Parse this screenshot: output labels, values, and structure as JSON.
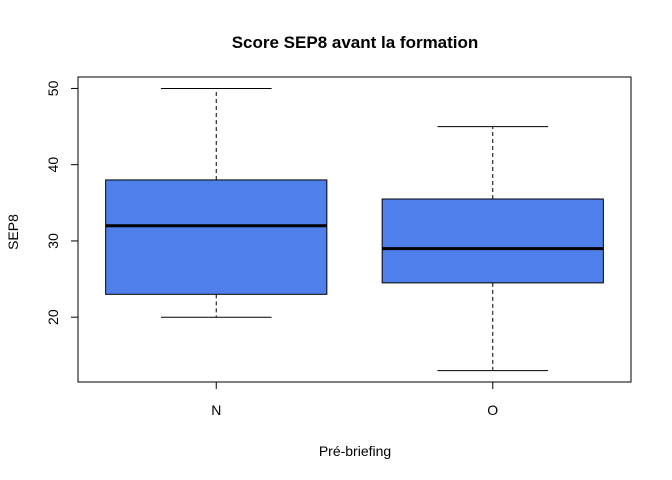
{
  "chart_data": {
    "type": "boxplot",
    "title": "Score SEP8 avant la formation",
    "xlabel": "Pré-briefing",
    "ylabel": "SEP8",
    "categories": [
      "N",
      "O"
    ],
    "boxes": [
      {
        "category": "N",
        "whisker_low": 20,
        "q1": 23,
        "median": 32,
        "q3": 38,
        "whisker_high": 50
      },
      {
        "category": "O",
        "whisker_low": 13,
        "q1": 24.5,
        "median": 29,
        "q3": 35.5,
        "whisker_high": 45
      }
    ],
    "ylim": [
      11.5,
      51.5
    ],
    "yticks": [
      20,
      30,
      40,
      50
    ],
    "ytick_labels": [
      "20",
      "30",
      "40",
      "50"
    ],
    "box_color": "#4f7fea",
    "grid": false,
    "legend": "none"
  }
}
